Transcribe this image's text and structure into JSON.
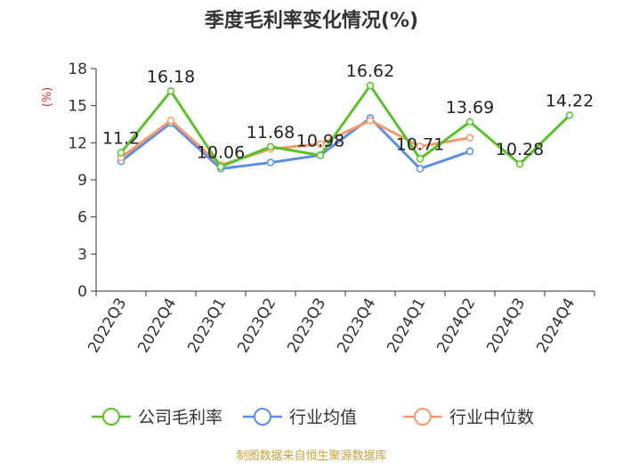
{
  "chart_data": {
    "type": "line",
    "title": "季度毛利率变化情况(%)",
    "ylabel": "(%)",
    "xlabel": "",
    "ylim": [
      0,
      18
    ],
    "yticks": [
      0,
      3,
      6,
      9,
      12,
      15,
      18
    ],
    "grid": false,
    "legend_position": "bottom",
    "categories": [
      "2022Q3",
      "2022Q4",
      "2023Q1",
      "2023Q2",
      "2023Q3",
      "2023Q4",
      "2024Q1",
      "2024Q2",
      "2024Q3",
      "2024Q4"
    ],
    "series": [
      {
        "name": "公司毛利率",
        "color": "#5bc12b",
        "values": [
          11.2,
          16.18,
          10.06,
          11.68,
          10.98,
          16.62,
          10.71,
          13.69,
          10.28,
          14.22
        ],
        "labels": [
          "11.2",
          "16.18",
          "10.06",
          "11.68",
          "10.98",
          "16.62",
          "10.71",
          "13.69",
          "10.28",
          "14.22"
        ]
      },
      {
        "name": "行业均值",
        "color": "#5b8ee6",
        "values": [
          10.5,
          13.6,
          9.9,
          10.4,
          11.0,
          14.0,
          9.9,
          11.3,
          null,
          null
        ]
      },
      {
        "name": "行业中位数",
        "color": "#f59a6a",
        "values": [
          10.8,
          13.8,
          10.2,
          11.5,
          11.9,
          13.8,
          11.7,
          12.4,
          null,
          null
        ]
      }
    ]
  },
  "footer": {
    "source": "制图数据来自恒生聚源数据库",
    "source_color": "#c9a13a"
  }
}
